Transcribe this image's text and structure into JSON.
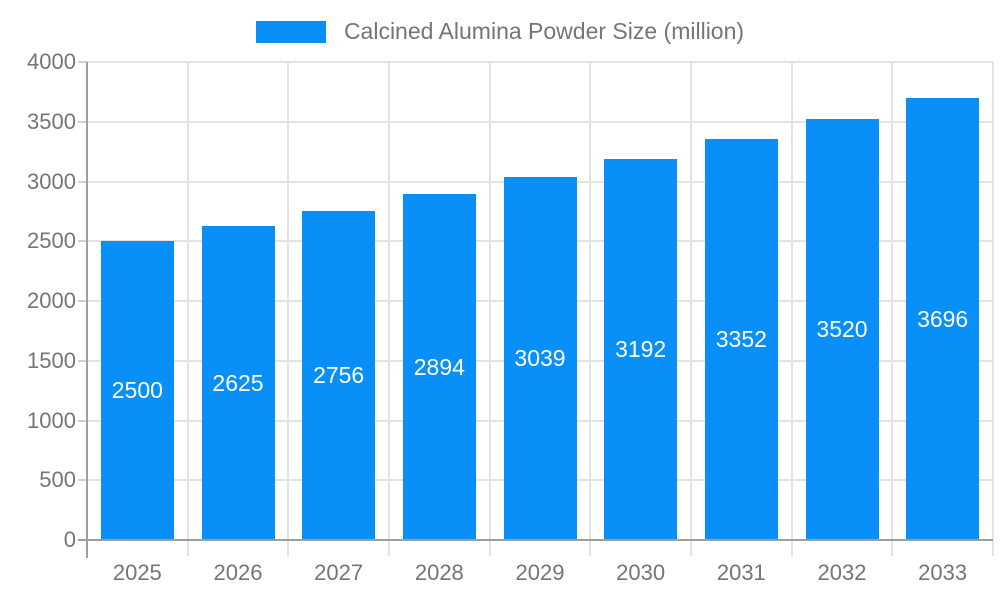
{
  "chart_data": {
    "type": "bar",
    "title": "Calcined Alumina Powder Size (million)",
    "legend_label": "Calcined Alumina Powder Size (million)",
    "legend_position": "top",
    "categories": [
      "2025",
      "2026",
      "2027",
      "2028",
      "2029",
      "2030",
      "2031",
      "2032",
      "2033"
    ],
    "values": [
      2500,
      2625,
      2756,
      2894,
      3039,
      3192,
      3352,
      3520,
      3696
    ],
    "xlabel": "",
    "ylabel": "",
    "ylim": [
      0,
      4000
    ],
    "yticks": [
      0,
      500,
      1000,
      1500,
      2000,
      2500,
      3000,
      3500,
      4000
    ],
    "grid": true,
    "value_labels": "inside-center",
    "colors": {
      "bar": "#0890F8",
      "grid": "#E3E3E3",
      "axis": "#9E9E9E",
      "tick": "#CFCFCF",
      "text": "#757575",
      "value_label": "#FFFFFF",
      "background": "#FFFFFF"
    }
  }
}
